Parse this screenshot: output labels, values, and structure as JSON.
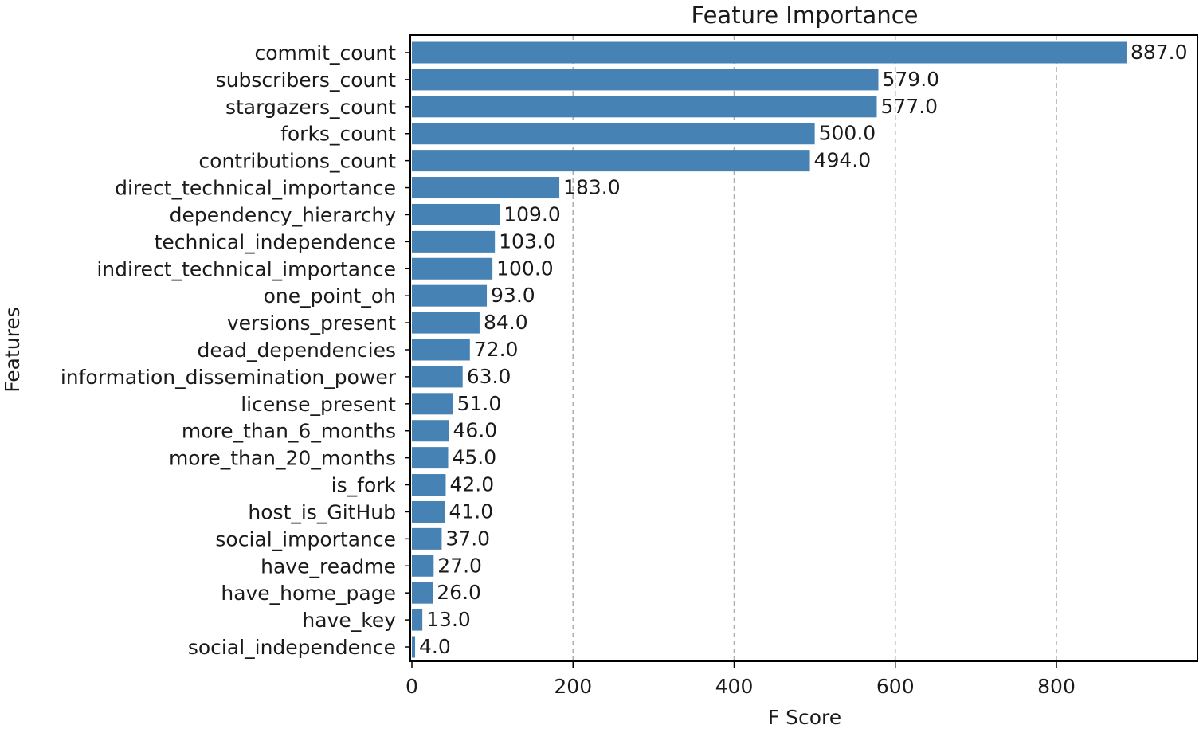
{
  "chart_data": {
    "type": "bar",
    "orientation": "horizontal",
    "title": "Feature Importance",
    "xlabel": "F Score",
    "ylabel": "Features",
    "xlim": [
      0,
      980
    ],
    "xticks": [
      0,
      200,
      400,
      600,
      800
    ],
    "grid": "x-dashed",
    "bar_color": "#4682b4",
    "categories": [
      "commit_count",
      "subscribers_count",
      "stargazers_count",
      "forks_count",
      "contributions_count",
      "direct_technical_importance",
      "dependency_hierarchy",
      "technical_independence",
      "indirect_technical_importance",
      "one_point_oh",
      "versions_present",
      "dead_dependencies",
      "information_dissemination_power",
      "license_present",
      "more_than_6_months",
      "more_than_20_months",
      "is_fork",
      "host_is_GitHub",
      "social_importance",
      "have_readme",
      "have_home_page",
      "have_key",
      "social_independence"
    ],
    "values": [
      887.0,
      579.0,
      577.0,
      500.0,
      494.0,
      183.0,
      109.0,
      103.0,
      100.0,
      93.0,
      84.0,
      72.0,
      63.0,
      51.0,
      46.0,
      45.0,
      42.0,
      41.0,
      37.0,
      27.0,
      26.0,
      13.0,
      4.0
    ],
    "data_labels": [
      "887.0",
      "579.0",
      "577.0",
      "500.0",
      "494.0",
      "183.0",
      "109.0",
      "103.0",
      "100.0",
      "93.0",
      "84.0",
      "72.0",
      "63.0",
      "51.0",
      "46.0",
      "45.0",
      "42.0",
      "41.0",
      "37.0",
      "27.0",
      "26.0",
      "13.0",
      "4.0"
    ]
  }
}
